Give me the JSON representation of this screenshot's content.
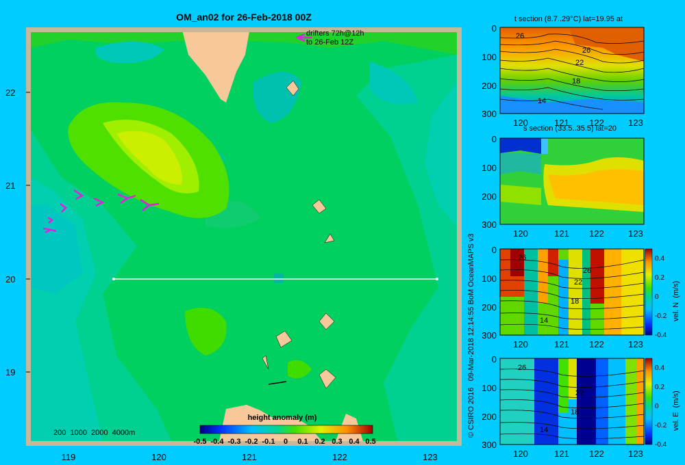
{
  "title": "OM_an02 for 26-Feb-2018 00Z",
  "map": {
    "lat_labels": [
      "22",
      "21",
      "20",
      "19"
    ],
    "lon_labels": [
      "119",
      "120",
      "121",
      "122",
      "123"
    ],
    "drifter_note_1": "drifters 72h@12h",
    "drifter_note_2": "to 26-Feb 12Z",
    "depth_legend": "200  1000  2000  4000m",
    "colorbar_title": "height anomaly  (m)",
    "colorbar_ticks": [
      "-0.5",
      "-0.4",
      "-0.3",
      "-0.2",
      "-0.1",
      "0",
      "0.1",
      "0.2",
      "0.3",
      "0.4",
      "0.5"
    ],
    "section_line_lat": 20
  },
  "credit": "© CSIRO 2016   09-Mar-2018 12:14:55 BoM OceanMAPS v3",
  "sections": [
    {
      "title": "t section (8.7..29°C) lat=19.95 at",
      "y_ticks": [
        "0",
        "100",
        "200",
        "300"
      ],
      "x_ticks": [
        "120",
        "121",
        "122",
        "123"
      ],
      "contour_labels": [
        "26",
        "26",
        "22",
        "18",
        "14"
      ]
    },
    {
      "title": "s section (33.5..35.5) lat=20",
      "y_ticks": [
        "0",
        "100",
        "200",
        "300"
      ],
      "x_ticks": [
        "120",
        "121",
        "122",
        "123"
      ],
      "contour_labels": []
    },
    {
      "title": "",
      "y_ticks": [
        "0",
        "100",
        "200",
        "300"
      ],
      "x_ticks": [
        "120",
        "121",
        "122",
        "123"
      ],
      "contour_labels": [
        "26",
        "26",
        "22",
        "18",
        "14"
      ],
      "colorbar_label": "vel. N  (m/s)",
      "colorbar_ticks": [
        "0.4",
        "0.2",
        "0",
        "-0.2",
        "-0.4"
      ]
    },
    {
      "title": "",
      "y_ticks": [
        "0",
        "100",
        "200",
        "300"
      ],
      "x_ticks": [
        "120",
        "121",
        "122",
        "123"
      ],
      "contour_labels": [
        "26",
        "22",
        "18",
        "14"
      ],
      "colorbar_label": "vel. E  (m/s)",
      "colorbar_ticks": [
        "0.4",
        "0.2",
        "0",
        "-0.2",
        "-0.4"
      ]
    }
  ],
  "colors": {
    "background": "#00ccff",
    "land": "#f7c89a",
    "frame": "#c8b89a",
    "drifter": "#e020e0",
    "section_line": "#ffffff"
  }
}
